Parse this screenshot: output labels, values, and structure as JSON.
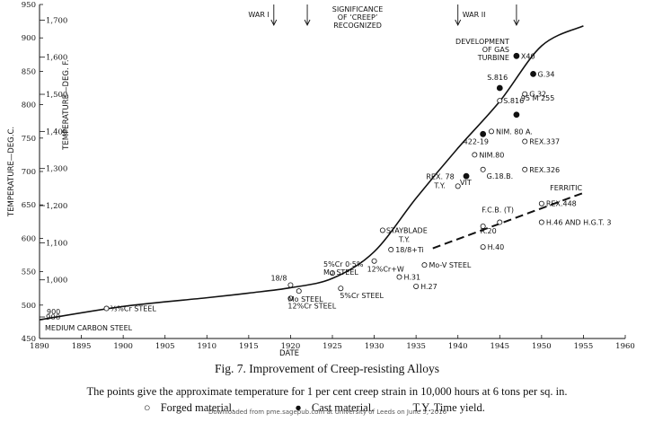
{
  "chart_data": {
    "type": "scatter",
    "title": "Fig. 7. Improvement of Creep-resisting Alloys",
    "subtitle": "The points give the approximate temperature for 1 per cent creep strain in 10,000 hours at 6 tons per sq. in.",
    "xlabel": "DATE",
    "ylabel_c": "TEMPERATURE—DEG.C.",
    "ylabel_f": "TEMPERATURE—DEG. F.",
    "xlim": [
      1890,
      1960
    ],
    "ylim": [
      450,
      950
    ],
    "x_ticks": [
      1890,
      1895,
      1900,
      1905,
      1910,
      1915,
      1920,
      1925,
      1930,
      1935,
      1940,
      1945,
      1950,
      1955,
      1960
    ],
    "x_tick_labels": [
      "1890",
      "1895",
      "1900",
      "1905",
      "1910",
      "1915",
      "1920",
      "1925",
      "1930",
      "1935",
      "1940",
      "1945",
      "1950",
      "1955",
      "1960"
    ],
    "y_ticks_c": [
      450,
      500,
      550,
      600,
      650,
      700,
      750,
      800,
      850,
      900,
      950
    ],
    "y_tick_labels_c": [
      "450",
      "500",
      "550",
      "600",
      "650",
      "700",
      "750",
      "800",
      "850",
      "900",
      "950"
    ],
    "y_ticks_f": [
      900,
      1000,
      1100,
      1200,
      1300,
      1400,
      1500,
      1600,
      1700
    ],
    "y_tick_labels_f": [
      "900",
      "1,000",
      "1,100",
      "1,200",
      "1,300",
      "1,400",
      "1,500",
      "1,600",
      "1,700"
    ],
    "grid": false,
    "series": [
      {
        "name": "Forged material",
        "marker": "open-circle",
        "points": [
          {
            "x": 1898,
            "y": 495,
            "label": "⅔%Cr STEEL"
          },
          {
            "x": 1920,
            "y": 530,
            "label": "18/8"
          },
          {
            "x": 1920,
            "y": 510,
            "label": "12%Cr STEEL"
          },
          {
            "x": 1921,
            "y": 521,
            "label": "Mo STEEL"
          },
          {
            "x": 1926,
            "y": 525,
            "label": "5%Cr STEEL"
          },
          {
            "x": 1925,
            "y": 548,
            "label": "5%Cr 0·5% Mo STEEL"
          },
          {
            "x": 1930,
            "y": 566,
            "label": "12%Cr+W"
          },
          {
            "x": 1931,
            "y": 612,
            "label": "STAYBLADE T.Y."
          },
          {
            "x": 1932,
            "y": 583,
            "label": "18/8+Ti"
          },
          {
            "x": 1936,
            "y": 560,
            "label": "Mo-V STEEL"
          },
          {
            "x": 1933,
            "y": 542,
            "label": "H.31"
          },
          {
            "x": 1935,
            "y": 528,
            "label": "H.27"
          },
          {
            "x": 1940,
            "y": 678,
            "label": "REX. 78 T.Y."
          },
          {
            "x": 1942,
            "y": 725,
            "label": "NIM.80"
          },
          {
            "x": 1943,
            "y": 703,
            "label": "G.18.B."
          },
          {
            "x": 1944,
            "y": 760,
            "label": "NIM. 80 A."
          },
          {
            "x": 1945,
            "y": 806,
            "label": "S.816"
          },
          {
            "x": 1948,
            "y": 816,
            "label": "G.32"
          },
          {
            "x": 1948,
            "y": 745,
            "label": "REX.337"
          },
          {
            "x": 1948,
            "y": 703,
            "label": "REX.326"
          },
          {
            "x": 1943,
            "y": 618,
            "label": "R.20"
          },
          {
            "x": 1943,
            "y": 587,
            "label": "H.40"
          },
          {
            "x": 1945,
            "y": 624,
            "label": "F.C.B. (T)"
          },
          {
            "x": 1950,
            "y": 624,
            "label": "H.46 AND H.G.T. 3"
          },
          {
            "x": 1950,
            "y": 652,
            "label": "REX.448"
          }
        ]
      },
      {
        "name": "Cast material",
        "marker": "filled-circle",
        "points": [
          {
            "x": 1941,
            "y": 693,
            "label": "VIT"
          },
          {
            "x": 1943,
            "y": 756,
            "label": "422-19"
          },
          {
            "x": 1945,
            "y": 825,
            "label": "S.816"
          },
          {
            "x": 1947,
            "y": 873,
            "label": "X40"
          },
          {
            "x": 1949,
            "y": 846,
            "label": "G.34"
          },
          {
            "x": 1947,
            "y": 785,
            "label": "95 M 255"
          }
        ]
      }
    ],
    "curves": [
      {
        "style": "solid",
        "x": [
          1890,
          1900,
          1910,
          1915,
          1920,
          1925,
          1930,
          1935,
          1940,
          1945,
          1950,
          1955
        ],
        "y": [
          478,
          498,
          511,
          518,
          526,
          540,
          580,
          660,
          735,
          805,
          888,
          918
        ]
      },
      {
        "style": "dashed",
        "name": "FERRITIC",
        "x": [
          1937,
          1955
        ],
        "y": [
          585,
          668
        ]
      }
    ],
    "event_markers": [
      {
        "x": 1918,
        "label": "WAR I"
      },
      {
        "x": 1922,
        "label": "SIGNIFICANCE OF 'CREEP' RECOGNIZED"
      },
      {
        "x": 1940,
        "label": "WAR II"
      },
      {
        "x": 1947,
        "label": "DEVELOPMENT OF GAS TURBINE"
      }
    ],
    "annotations": {
      "base_temp_f": "900",
      "medium_carbon": "MEDIUM CARBON STEEL",
      "ferritic": "FERRITIC"
    }
  },
  "caption": {
    "title": "Fig. 7. Improvement of Creep-resisting Alloys",
    "body": "The points give the approximate temperature for 1 per cent creep strain in 10,000 hours at 6 tons per sq. in.",
    "legend_forged": "Forged material.",
    "legend_cast": "Cast material.",
    "legend_ty": "T.Y.  Time yield.",
    "watermark": "Downloaded from pme.sagepub.com at University of Leeds on June 5, 2016"
  }
}
